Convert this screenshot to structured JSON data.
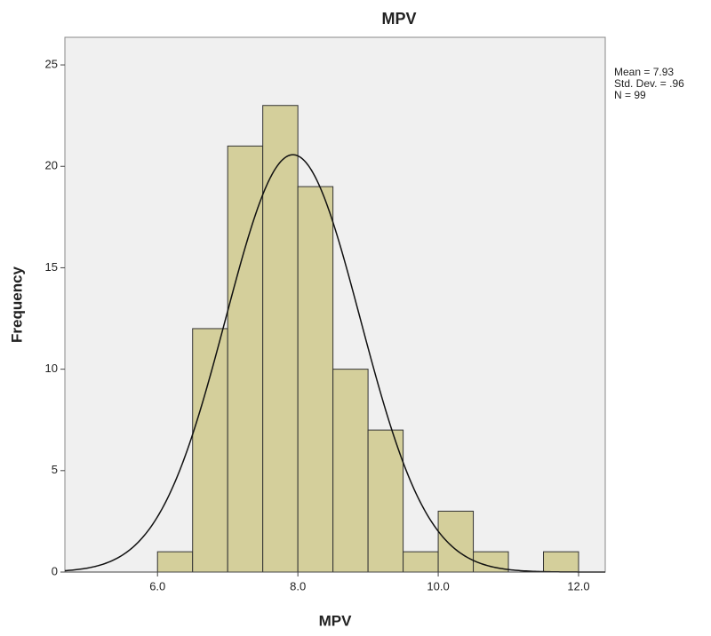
{
  "chart_data": {
    "type": "histogram",
    "title": "MPV",
    "x_label": "MPV",
    "y_label": "Frequency",
    "bins": [
      6.0,
      6.5,
      7.0,
      7.5,
      8.0,
      8.5,
      9.0,
      9.5,
      10.0,
      10.5,
      11.0,
      11.5,
      12.0
    ],
    "counts": [
      1,
      12,
      21,
      23,
      19,
      10,
      7,
      1,
      3,
      1,
      0,
      1
    ],
    "color": "#d4cf9b",
    "xlim": [
      4.68,
      12.38
    ],
    "xticks": [
      {
        "value": 6,
        "label": "6.0"
      },
      {
        "value": 8,
        "label": "8.0"
      },
      {
        "value": 10,
        "label": "10.0"
      },
      {
        "value": 12,
        "label": "12.0"
      }
    ],
    "ylim": [
      0,
      26.36
    ],
    "yticks": [
      0,
      5,
      10,
      15,
      20,
      25
    ],
    "stats": [
      {
        "value": 7.93,
        "label": "Mean = 7.93"
      },
      {
        "value": 0.96,
        "label": "Std. Dev. = .96"
      },
      {
        "value": 99,
        "label": "N = 99"
      }
    ],
    "grid": false
  }
}
